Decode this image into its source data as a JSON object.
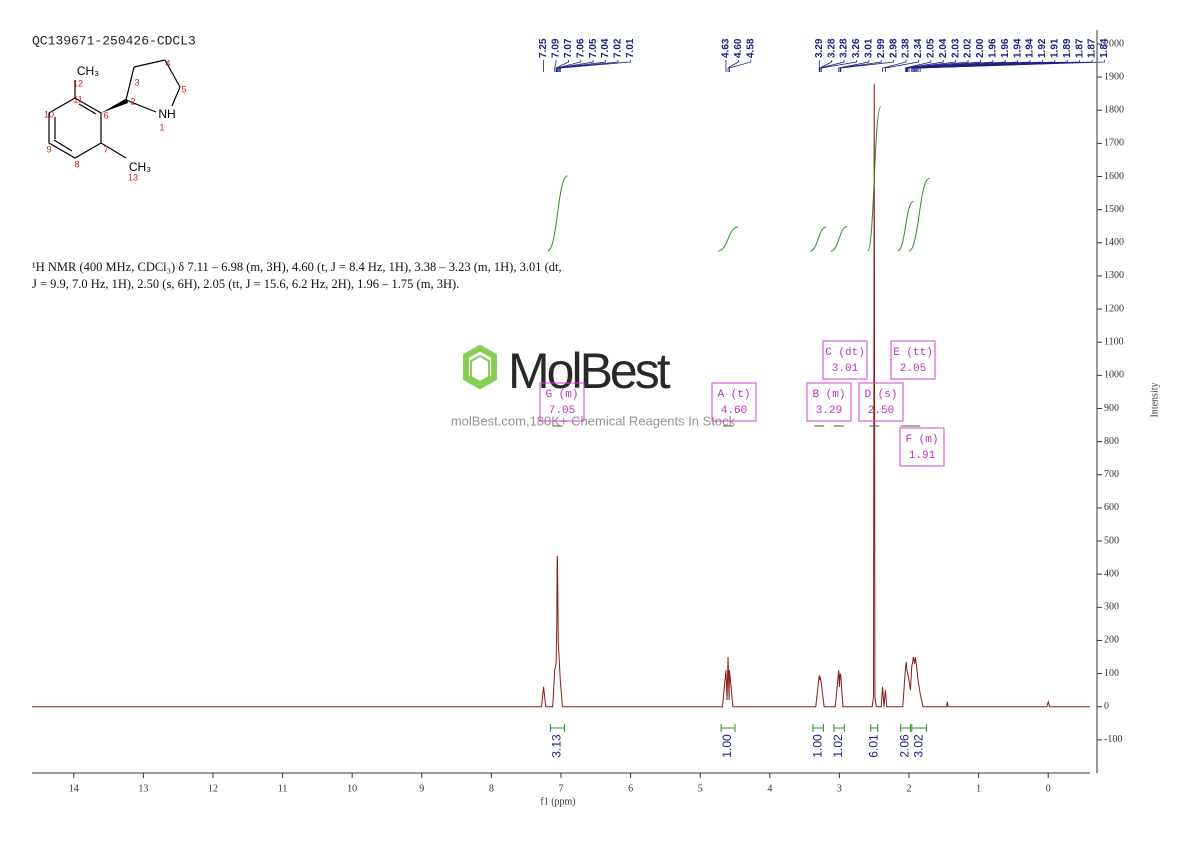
{
  "chart_data": {
    "type": "line",
    "title": "QC139671-250426-CDCL3",
    "description": [
      "¹H NMR (400 MHz, CDCl₃) δ 7.11 – 6.98 (m, 3H), 4.60 (t, J = 8.4 Hz, 1H), 3.38 – 3.23 (m, 1H), 3.01 (dt,",
      "J = 9.9, 7.0 Hz, 1H), 2.50 (s, 6H), 2.05 (tt, J = 15.6, 6.2 Hz, 2H), 1.96 – 1.75 (m, 3H)."
    ],
    "watermark": {
      "logo": "MolBest",
      "tagline": "molBest.com,180K+ Chemical Reagents In Stock"
    },
    "structure": {
      "labels": [
        "CH₃",
        "12",
        "11",
        "3",
        "4",
        "5",
        "2",
        "6",
        "NH",
        "1",
        "10",
        "9",
        "8",
        "7",
        "CH₃",
        "13"
      ]
    },
    "x_label": "f1 (ppm)",
    "y_label": "Intensity",
    "xlim": [
      14.6,
      -0.6
    ],
    "xticks": [
      14,
      13,
      12,
      11,
      10,
      9,
      8,
      7,
      6,
      5,
      4,
      3,
      2,
      1,
      0
    ],
    "ylim": [
      -200,
      2050
    ],
    "yticks": [
      -100,
      0,
      100,
      200,
      300,
      400,
      500,
      600,
      700,
      800,
      900,
      1000,
      1100,
      1200,
      1300,
      1400,
      1500,
      1600,
      1700,
      1800,
      1900,
      2000
    ],
    "x": [
      14.6,
      7.28,
      7.25,
      7.22,
      7.12,
      7.09,
      7.07,
      7.06,
      7.055,
      7.05,
      7.04,
      7.02,
      7.01,
      6.98,
      4.68,
      4.63,
      4.615,
      4.6,
      4.585,
      4.58,
      4.53,
      3.34,
      3.29,
      3.28,
      3.275,
      3.26,
      3.22,
      3.06,
      3.01,
      3.0,
      2.99,
      2.98,
      2.95,
      2.53,
      2.51,
      2.5,
      2.49,
      2.47,
      2.4,
      2.38,
      2.36,
      2.34,
      2.32,
      2.09,
      2.05,
      2.04,
      2.03,
      2.02,
      2.0,
      1.98,
      1.96,
      1.95,
      1.94,
      1.93,
      1.92,
      1.91,
      1.89,
      1.87,
      1.84,
      1.8,
      1.46,
      1.45,
      1.44,
      0.02,
      0,
      -0.02,
      -0.6
    ],
    "series": [
      {
        "color": "#8b1a1a",
        "values": [
          0,
          0,
          60,
          0,
          0,
          110,
          130,
          250,
          455,
          440,
          200,
          120,
          80,
          0,
          0,
          110,
          20,
          150,
          20,
          110,
          0,
          0,
          95,
          80,
          90,
          70,
          0,
          0,
          110,
          60,
          100,
          95,
          0,
          0,
          30,
          1880,
          30,
          0,
          0,
          60,
          0,
          50,
          0,
          0,
          120,
          135,
          110,
          100,
          80,
          50,
          125,
          130,
          150,
          140,
          130,
          150,
          120,
          80,
          40,
          0,
          0,
          15,
          0,
          0,
          15,
          0,
          0
        ]
      }
    ],
    "peak_picks": [
      {
        "value": 7.25,
        "label": "7.25"
      },
      {
        "value": 7.09,
        "label": "7.09"
      },
      {
        "value": 7.07,
        "label": "7.07"
      },
      {
        "value": 7.06,
        "label": "7.06"
      },
      {
        "value": 7.05,
        "label": "7.05"
      },
      {
        "value": 7.04,
        "label": "7.04"
      },
      {
        "value": 7.02,
        "label": "7.02"
      },
      {
        "value": 7.01,
        "label": "7.01"
      },
      {
        "value": 4.63,
        "label": "4.63"
      },
      {
        "value": 4.6,
        "label": "4.60"
      },
      {
        "value": 4.58,
        "label": "4.58"
      },
      {
        "value": 3.29,
        "label": "3.29"
      },
      {
        "value": 3.28,
        "label": "3.28"
      },
      {
        "value": 3.28,
        "label": "3.28"
      },
      {
        "value": 3.26,
        "label": "3.26"
      },
      {
        "value": 3.01,
        "label": "3.01"
      },
      {
        "value": 2.99,
        "label": "2.99"
      },
      {
        "value": 2.98,
        "label": "2.98"
      },
      {
        "value": 2.38,
        "label": "2.38"
      },
      {
        "value": 2.34,
        "label": "2.34"
      },
      {
        "value": 2.05,
        "label": "2.05"
      },
      {
        "value": 2.04,
        "label": "2.04"
      },
      {
        "value": 2.03,
        "label": "2.03"
      },
      {
        "value": 2.02,
        "label": "2.02"
      },
      {
        "value": 2.0,
        "label": "2.00"
      },
      {
        "value": 1.96,
        "label": "1.96"
      },
      {
        "value": 1.96,
        "label": "1.96"
      },
      {
        "value": 1.94,
        "label": "1.94"
      },
      {
        "value": 1.94,
        "label": "1.94"
      },
      {
        "value": 1.92,
        "label": "1.92"
      },
      {
        "value": 1.91,
        "label": "1.91"
      },
      {
        "value": 1.89,
        "label": "1.89"
      },
      {
        "value": 1.87,
        "label": "1.87"
      },
      {
        "value": 1.87,
        "label": "1.87"
      },
      {
        "value": 1.84,
        "label": "1.84"
      }
    ],
    "integrals": {
      "ranges": [
        [
          7.15,
          6.95
        ],
        [
          4.7,
          4.5
        ],
        [
          3.38,
          3.23
        ],
        [
          3.08,
          2.93
        ],
        [
          2.55,
          2.45
        ],
        [
          2.12,
          1.98
        ],
        [
          1.96,
          1.75
        ]
      ],
      "values": [
        3.13,
        1,
        1,
        1.02,
        6.01,
        2.06,
        3.02
      ],
      "value_labels": [
        "3.13",
        "1.00",
        "1.00",
        "1.02",
        "6.01",
        "2.06",
        "3.02"
      ],
      "color": "#2e8b2e"
    },
    "multiplets": [
      {
        "name": "G (m)",
        "shift": {
          "value": 7.05,
          "label": "7.05"
        }
      },
      {
        "name": "A (t)",
        "shift": {
          "value": 4.6,
          "label": "4.60"
        }
      },
      {
        "name": "B (m)",
        "shift": {
          "value": 3.29,
          "label": "3.29"
        }
      },
      {
        "name": "C (dt)",
        "shift": {
          "value": 3.01,
          "label": "3.01"
        }
      },
      {
        "name": "D (s)",
        "shift": {
          "value": 2.5,
          "label": "2.50"
        }
      },
      {
        "name": "E (tt)",
        "shift": {
          "value": 2.05,
          "label": "2.05"
        }
      },
      {
        "name": "F (m)",
        "shift": {
          "value": 1.91,
          "label": "1.91"
        }
      }
    ]
  }
}
